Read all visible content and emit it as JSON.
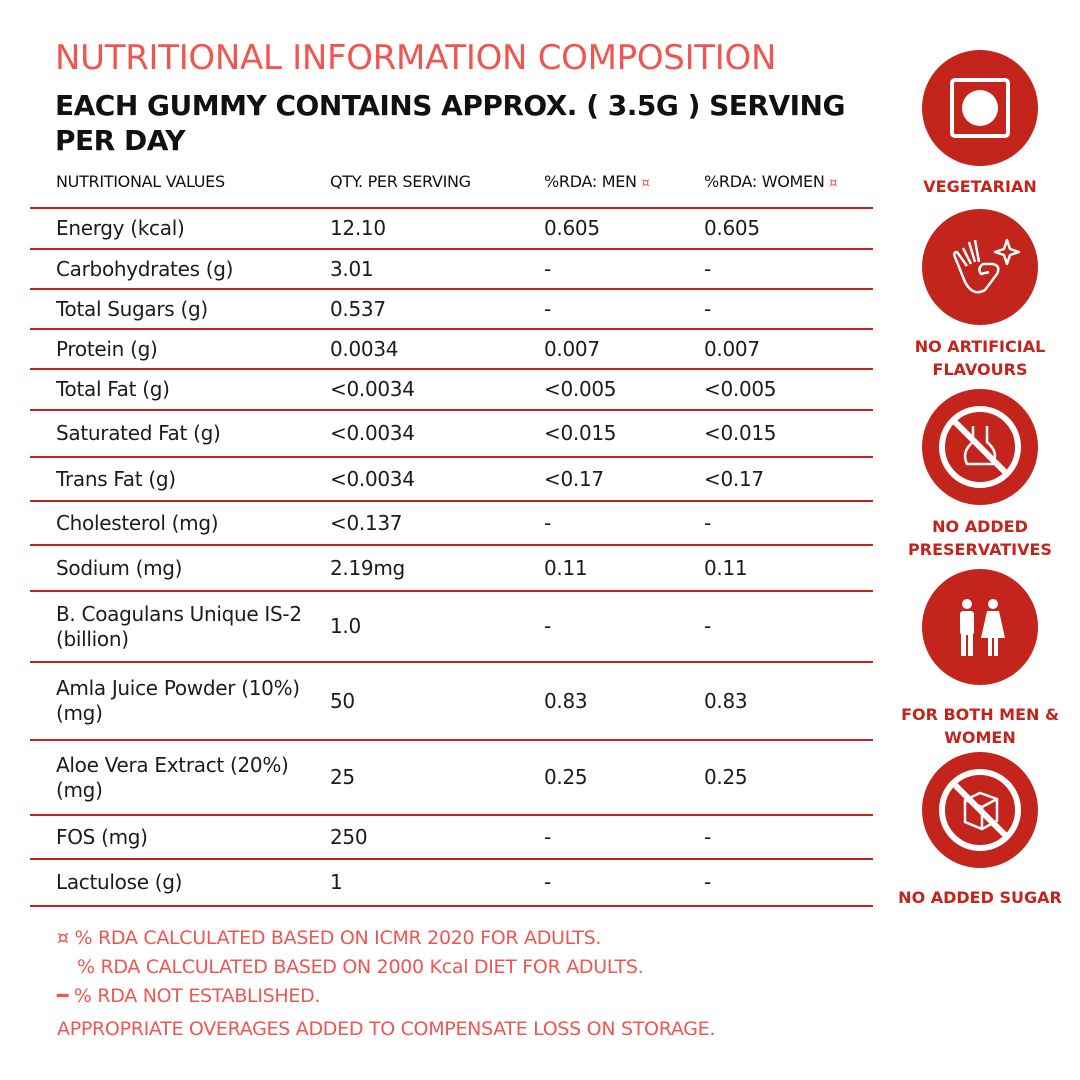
{
  "title": "NUTRITIONAL INFORMATION COMPOSITION",
  "subtitle": "EACH GUMMY CONTAINS APPROX. ( 3.5G ) SERVING PER DAY",
  "table": {
    "headers": [
      "NUTRITIONAL VALUES",
      "QTY. PER SERVING",
      "%RDA: MEN",
      "%RDA: WOMEN"
    ],
    "header_mark": "¤",
    "rows": [
      [
        "Energy (kcal)",
        "12.10",
        "0.605",
        "0.605"
      ],
      [
        "Carbohydrates (g)",
        "3.01",
        "-",
        "-"
      ],
      [
        "Total Sugars (g)",
        "0.537",
        "-",
        "-"
      ],
      [
        "Protein (g)",
        "0.0034",
        "0.007",
        "0.007"
      ],
      [
        "Total Fat (g)",
        "<0.0034",
        "<0.005",
        "<0.005"
      ],
      [
        "Saturated Fat (g)",
        "<0.0034",
        "<0.015",
        "<0.015"
      ],
      [
        "Trans Fat (g)",
        "<0.0034",
        "<0.17",
        "<0.17"
      ],
      [
        "Cholesterol (mg)",
        "<0.137",
        "-",
        "-"
      ],
      [
        "Sodium (mg)",
        "2.19mg",
        "0.11",
        "0.11"
      ],
      [
        "B. Coagulans Unique IS-2 (billion)",
        "1.0",
        "-",
        "-"
      ],
      [
        "Amla Juice Powder (10%) (mg)",
        "50",
        "0.83",
        "0.83"
      ],
      [
        "Aloe Vera Extract (20%) (mg)",
        "25",
        "0.25",
        "0.25"
      ],
      [
        "FOS (mg)",
        "250",
        "-",
        "-"
      ],
      [
        "Lactulose (g)",
        "1",
        "-",
        "-"
      ]
    ]
  },
  "footnotes": [
    "¤ % RDA CALCULATED BASED ON ICMR 2020 FOR ADULTS.",
    "% RDA CALCULATED BASED ON 2000 Kcal DIET FOR ADULTS.",
    "━ % RDA NOT ESTABLISHED.",
    "APPROPRIATE OVERAGES ADDED TO COMPENSATE LOSS ON STORAGE."
  ],
  "badges": [
    {
      "icon": "vegetarian-icon",
      "label": "VEGETARIAN"
    },
    {
      "icon": "ok-hand-icon",
      "label": "NO ARTIFICIAL FLAVOURS"
    },
    {
      "icon": "no-preservatives-icon",
      "label": "NO ADDED PRESERVATIVES"
    },
    {
      "icon": "men-women-icon",
      "label": "FOR BOTH MEN & WOMEN"
    },
    {
      "icon": "no-sugar-icon",
      "label": "NO ADDED SUGAR"
    }
  ],
  "colors": {
    "accent": "#ef5652",
    "brand_red": "#c3241b",
    "rule": "#c5221f"
  }
}
